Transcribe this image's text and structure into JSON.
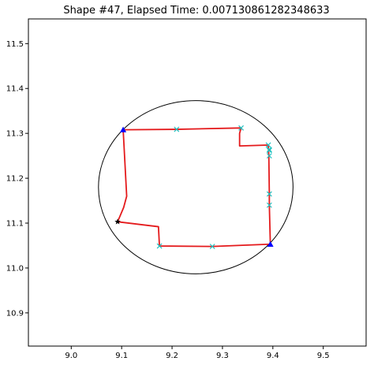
{
  "chart_data": {
    "type": "line",
    "title": "Shape #47, Elapsed Time: 0.00713086128234863​3",
    "xlabel": "",
    "ylabel": "",
    "xlim": [
      8.915,
      9.585
    ],
    "ylim": [
      10.826,
      11.555
    ],
    "xticks": [
      "9.0",
      "9.1",
      "9.2",
      "9.3",
      "9.4",
      "9.5"
    ],
    "xtick_values": [
      9.0,
      9.1,
      9.2,
      9.3,
      9.4,
      9.5
    ],
    "yticks": [
      "10.9",
      "11.0",
      "11.1",
      "11.2",
      "11.3",
      "11.4",
      "11.5"
    ],
    "ytick_values": [
      10.9,
      11.0,
      11.1,
      11.2,
      11.3,
      11.4,
      11.5
    ],
    "grid": false,
    "circle": {
      "cx": 9.247,
      "cy": 11.18,
      "r": 0.193,
      "color": "#000000"
    },
    "path": {
      "color": "#e41a1c",
      "x": [
        9.092,
        9.173,
        9.175,
        9.28,
        9.395,
        9.393,
        9.393,
        9.392,
        9.391,
        9.334,
        9.334,
        9.337,
        9.209,
        9.103,
        9.11,
        9.104,
        9.092
      ],
      "y": [
        11.103,
        11.092,
        11.049,
        11.048,
        11.053,
        11.14,
        11.165,
        11.25,
        11.274,
        11.272,
        11.3,
        11.312,
        11.309,
        11.308,
        11.16,
        11.135,
        11.103
      ]
    },
    "crosses": {
      "color": "#1fbfbf",
      "x": [
        9.175,
        9.28,
        9.393,
        9.393,
        9.393,
        9.393,
        9.393,
        9.391,
        9.337,
        9.209
      ],
      "y": [
        11.049,
        11.048,
        11.14,
        11.165,
        11.25,
        11.262,
        11.264,
        11.274,
        11.312,
        11.309
      ]
    },
    "triangles": {
      "color": "#0000ff",
      "x": [
        9.103,
        9.395
      ],
      "y": [
        11.308,
        11.053
      ]
    },
    "star": {
      "color": "#000000",
      "x": 9.092,
      "y": 11.103
    }
  }
}
